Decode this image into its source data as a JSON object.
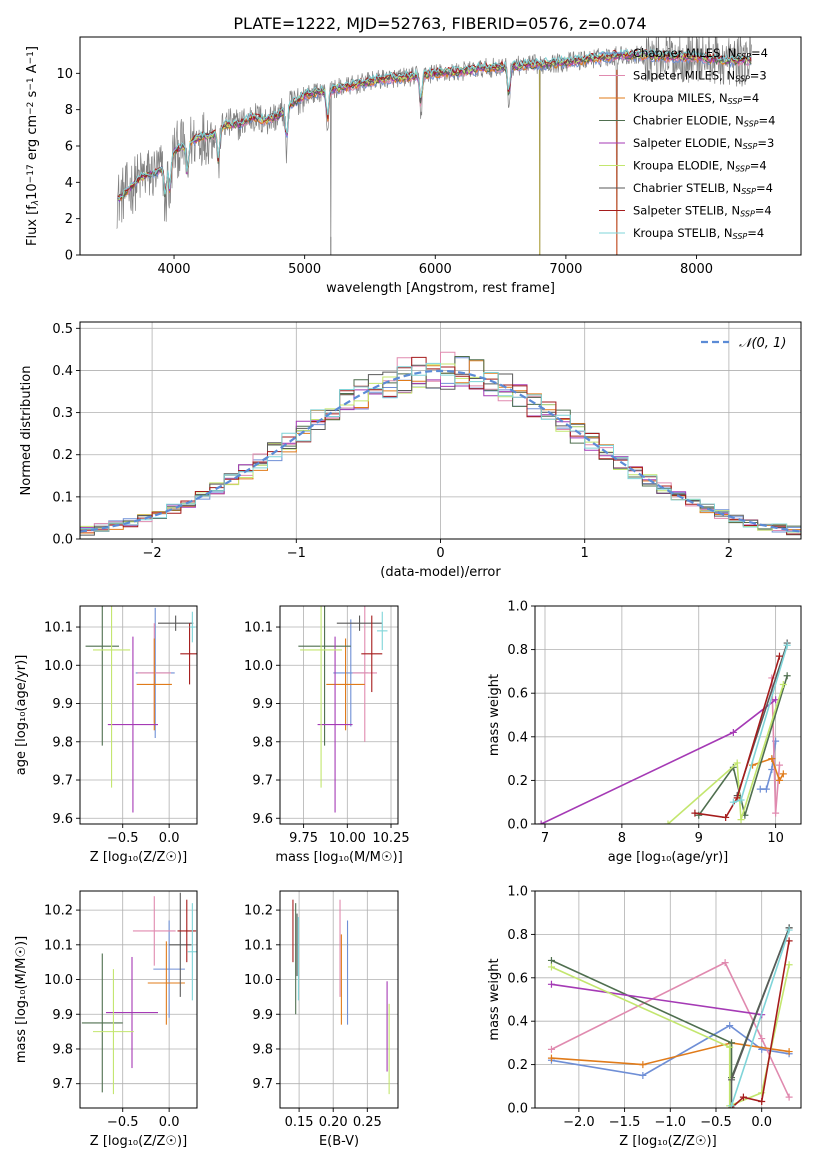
{
  "figure": {
    "title": "PLATE=1222, MJD=52763, FIBERID=0576, z=0.074",
    "model_colors": [
      "#6f8fd6",
      "#e08aaf",
      "#e07b1a",
      "#4f6f4f",
      "#a53ab5",
      "#c3e66e",
      "#5a5a5a",
      "#a51c1c",
      "#7fd4d8"
    ]
  },
  "chart_data": [
    {
      "id": "spectrum",
      "type": "line",
      "title": "PLATE=1222, MJD=52763, FIBERID=0576, z=0.074",
      "xlabel": "wavelength [Angstrom, rest frame]",
      "ylabel_parts": [
        "Flux [f",
        "λ",
        "10",
        "−17",
        " erg cm",
        "−2",
        " s",
        "−1",
        " A",
        "−1",
        "]"
      ],
      "xlim": [
        3280,
        8800
      ],
      "ylim": [
        0,
        12
      ],
      "xticks": [
        4000,
        5000,
        6000,
        7000,
        8000
      ],
      "yticks": [
        0,
        2,
        4,
        6,
        8,
        10
      ],
      "legend_position": "right",
      "legend": [
        {
          "label": "Chabrier MILES, N",
          "sub": "SSP",
          "tail": "=4",
          "color": "#6f8fd6"
        },
        {
          "label": "Salpeter MILES, N",
          "sub": "SSP",
          "tail": "=3",
          "color": "#e08aaf"
        },
        {
          "label": "Kroupa MILES, N",
          "sub": "SSP",
          "tail": "=4",
          "color": "#e07b1a"
        },
        {
          "label": "Chabrier ELODIE, N",
          "sub": "SSP",
          "tail": "=4",
          "color": "#4f6f4f"
        },
        {
          "label": "Salpeter ELODIE, N",
          "sub": "SSP",
          "tail": "=3",
          "color": "#a53ab5"
        },
        {
          "label": "Kroupa ELODIE, N",
          "sub": "SSP",
          "tail": "=4",
          "color": "#c3e66e"
        },
        {
          "label": "Chabrier STELIB, N",
          "sub": "SSP",
          "tail": "=4",
          "color": "#5a5a5a"
        },
        {
          "label": "Salpeter STELIB, N",
          "sub": "SSP",
          "tail": "=4",
          "color": "#a51c1c"
        },
        {
          "label": "Kroupa STELIB, N",
          "sub": "SSP",
          "tail": "=4",
          "color": "#7fd4d8"
        }
      ],
      "continuum": {
        "x": [
          3560,
          3650,
          3750,
          3850,
          3950,
          4000,
          4100,
          4200,
          4300,
          4400,
          4500,
          4600,
          4700,
          4800,
          4900,
          5000,
          5200,
          5400,
          5600,
          5800,
          6000,
          6200,
          6400,
          6600,
          6800,
          7000,
          7200,
          7400,
          7600,
          7800,
          8000,
          8200,
          8400
        ],
        "y": [
          3.0,
          3.6,
          4.3,
          4.5,
          4.9,
          5.7,
          6.1,
          6.5,
          6.6,
          7.2,
          7.2,
          7.6,
          7.4,
          7.7,
          8.3,
          8.8,
          9.1,
          9.4,
          9.7,
          9.8,
          10.0,
          10.1,
          10.3,
          10.4,
          10.5,
          10.6,
          10.8,
          11.0,
          11.0,
          10.9,
          10.9,
          10.7,
          10.7
        ]
      },
      "absorption_lines": [
        3934,
        3969,
        4102,
        4340,
        4861,
        5175,
        5890,
        6563,
        8500,
        8542,
        8662
      ],
      "sky_artifacts": [
        5200,
        6800,
        7390
      ]
    },
    {
      "id": "residuals",
      "type": "line",
      "xlabel": "(data-model)/error",
      "ylabel": "Normed distribution",
      "xlim": [
        -2.5,
        2.5
      ],
      "ylim": [
        0,
        0.515
      ],
      "xticks": [
        -2,
        -1,
        0,
        1,
        2
      ],
      "xticklabels": [
        "−2",
        "−1",
        "0",
        "1",
        "2"
      ],
      "yticks": [
        0.0,
        0.1,
        0.2,
        0.3,
        0.4,
        0.5
      ],
      "yticklabels": [
        "0.0",
        "0.1",
        "0.2",
        "0.3",
        "0.4",
        "0.5"
      ],
      "grid": true,
      "legend_label": "𝒩(0, 1)",
      "legend_position": "top-right",
      "bin_width": 0.1,
      "noise_amplitude": 0.045
    },
    {
      "id": "z_vs_age",
      "type": "scatter",
      "xlabel": "Z [log₁₀(Z/Z☉)]",
      "ylabel": "age  [log₁₀(age/yr)]",
      "xlim": [
        -0.96,
        0.3
      ],
      "ylim": [
        9.585,
        10.155
      ],
      "xticks": [
        -0.5,
        0.0
      ],
      "xticklabels": [
        "−0.5",
        "0.0"
      ],
      "yticks": [
        9.6,
        9.7,
        9.8,
        9.9,
        10.0,
        10.1
      ],
      "yticklabels": [
        "9.6",
        "9.7",
        "9.8",
        "9.9",
        "10.0",
        "10.1"
      ],
      "grid": true,
      "points": [
        {
          "x": -0.15,
          "y": 9.98,
          "xerr": 0.21,
          "yerr": 0.17
        },
        {
          "x": -0.16,
          "y": 9.98,
          "xerr": 0.18,
          "yerr": 0.13
        },
        {
          "x": -0.16,
          "y": 9.95,
          "xerr": 0.19,
          "yerr": 0.12
        },
        {
          "x": -0.72,
          "y": 10.05,
          "xerr": 0.18,
          "yerr": 0.26
        },
        {
          "x": -0.39,
          "y": 9.845,
          "xerr": 0.27,
          "yerr": 0.23
        },
        {
          "x": -0.62,
          "y": 10.04,
          "xerr": 0.2,
          "yerr": 0.36
        },
        {
          "x": 0.07,
          "y": 10.11,
          "xerr": 0.19,
          "yerr": 0.02
        },
        {
          "x": 0.22,
          "y": 10.03,
          "xerr": 0.1,
          "yerr": 0.08
        },
        {
          "x": 0.25,
          "y": 10.1,
          "xerr": 0.03,
          "yerr": 0.04
        }
      ]
    },
    {
      "id": "mass_vs_age",
      "type": "scatter",
      "xlabel": "mass [log₁₀(M/M☉)]",
      "ylabel": "",
      "xlim": [
        9.615,
        10.29
      ],
      "ylim": [
        9.585,
        10.155
      ],
      "xticks": [
        9.75,
        10.0,
        10.25
      ],
      "xticklabels": [
        "9.75",
        "10.00",
        "10.25"
      ],
      "yticks": [
        9.6,
        9.7,
        9.8,
        9.9,
        10.0,
        10.1
      ],
      "yticklabels": [
        "9.6",
        "9.7",
        "9.8",
        "9.9",
        "10.0",
        "10.1"
      ],
      "grid": true,
      "points": [
        {
          "x": 10.02,
          "y": 9.98,
          "xerr": 0.1,
          "yerr": 0.14
        },
        {
          "x": 10.1,
          "y": 9.98,
          "xerr": 0.07,
          "yerr": 0.18
        },
        {
          "x": 9.99,
          "y": 9.95,
          "xerr": 0.11,
          "yerr": 0.12
        },
        {
          "x": 9.87,
          "y": 10.05,
          "xerr": 0.15,
          "yerr": 0.26
        },
        {
          "x": 9.93,
          "y": 9.845,
          "xerr": 0.1,
          "yerr": 0.23
        },
        {
          "x": 9.85,
          "y": 10.04,
          "xerr": 0.12,
          "yerr": 0.36
        },
        {
          "x": 10.07,
          "y": 10.11,
          "xerr": 0.13,
          "yerr": 0.02
        },
        {
          "x": 10.14,
          "y": 10.03,
          "xerr": 0.06,
          "yerr": 0.1
        },
        {
          "x": 10.2,
          "y": 10.09,
          "xerr": 0.03,
          "yerr": 0.05
        }
      ]
    },
    {
      "id": "age_vs_weight",
      "type": "line",
      "xlabel": "age  [log₁₀(age/yr)]",
      "ylabel": "mass weight",
      "xlim": [
        6.87,
        10.33
      ],
      "ylim": [
        0.0,
        1.0
      ],
      "xticks": [
        7,
        8,
        9,
        10
      ],
      "xticklabels": [
        "7",
        "8",
        "9",
        "10"
      ],
      "yticks": [
        0.0,
        0.2,
        0.4,
        0.6,
        0.8,
        1.0
      ],
      "yticklabels": [
        "0.0",
        "0.2",
        "0.4",
        "0.6",
        "0.8",
        "1.0"
      ],
      "grid": true,
      "series": [
        {
          "x": [
            9.8,
            9.88,
            9.95,
            10.0
          ],
          "y": [
            0.16,
            0.16,
            0.25,
            0.38
          ]
        },
        {
          "x": [
            9.95,
            10.0,
            10.05
          ],
          "y": [
            0.67,
            0.05,
            0.27
          ]
        },
        {
          "x": [
            9.7,
            9.95,
            10.05,
            10.1
          ],
          "y": [
            0.27,
            0.3,
            0.2,
            0.23
          ]
        },
        {
          "x": [
            9.0,
            9.45,
            9.6,
            10.15
          ],
          "y": [
            0.04,
            0.26,
            0.04,
            0.68
          ]
        },
        {
          "x": [
            6.95,
            9.45,
            10.0
          ],
          "y": [
            0.0,
            0.42,
            0.57
          ]
        },
        {
          "x": [
            8.6,
            9.5,
            9.55,
            10.1
          ],
          "y": [
            0.0,
            0.28,
            0.02,
            0.64
          ]
        },
        {
          "x": [
            9.5,
            10.15
          ],
          "y": [
            0.13,
            0.83
          ]
        },
        {
          "x": [
            8.95,
            9.35,
            9.5,
            10.05
          ],
          "y": [
            0.05,
            0.03,
            0.12,
            0.77
          ]
        },
        {
          "x": [
            9.45,
            9.55,
            10.15
          ],
          "y": [
            0.1,
            0.11,
            0.82
          ]
        }
      ]
    },
    {
      "id": "z_vs_mass",
      "type": "scatter",
      "xlabel": "Z [log₁₀(Z/Z☉)]",
      "ylabel": "mass [log₁₀(M/M☉)]",
      "xlim": [
        -0.96,
        0.3
      ],
      "ylim": [
        9.63,
        10.255
      ],
      "xticks": [
        -0.5,
        0.0
      ],
      "xticklabels": [
        "−0.5",
        "0.0"
      ],
      "yticks": [
        9.7,
        9.8,
        9.9,
        10.0,
        10.1,
        10.2
      ],
      "yticklabels": [
        "9.7",
        "9.8",
        "9.9",
        "10.0",
        "10.1",
        "10.2"
      ],
      "grid": true,
      "points": [
        {
          "x": 0.0,
          "y": 10.03,
          "xerr": 0.17,
          "yerr": 0.14
        },
        {
          "x": -0.16,
          "y": 10.14,
          "xerr": 0.23,
          "yerr": 0.1
        },
        {
          "x": -0.03,
          "y": 9.99,
          "xerr": 0.2,
          "yerr": 0.12
        },
        {
          "x": -0.72,
          "y": 9.875,
          "xerr": 0.22,
          "yerr": 0.2
        },
        {
          "x": -0.4,
          "y": 9.905,
          "xerr": 0.28,
          "yerr": 0.16
        },
        {
          "x": -0.6,
          "y": 9.85,
          "xerr": 0.22,
          "yerr": 0.18
        },
        {
          "x": 0.12,
          "y": 10.1,
          "xerr": 0.12,
          "yerr": 0.15
        },
        {
          "x": 0.19,
          "y": 10.14,
          "xerr": 0.1,
          "yerr": 0.09
        },
        {
          "x": 0.25,
          "y": 10.08,
          "xerr": 0.05,
          "yerr": 0.14
        }
      ]
    },
    {
      "id": "ebv_vs_mass",
      "type": "scatter",
      "xlabel": "E(B-V)",
      "ylabel": "",
      "xlim": [
        0.122,
        0.295
      ],
      "ylim": [
        9.63,
        10.255
      ],
      "xticks": [
        0.15,
        0.2,
        0.25
      ],
      "xticklabels": [
        "0.15",
        "0.20",
        "0.25"
      ],
      "yticks": [
        9.7,
        9.8,
        9.9,
        10.0,
        10.1,
        10.2
      ],
      "yticklabels": [
        "9.7",
        "9.8",
        "9.9",
        "10.0",
        "10.1",
        "10.2"
      ],
      "grid": true,
      "points": [
        {
          "x": 0.221,
          "y": 10.02,
          "yerr": 0.15
        },
        {
          "x": 0.21,
          "y": 10.09,
          "yerr": 0.14
        },
        {
          "x": 0.212,
          "y": 10.0,
          "yerr": 0.13
        },
        {
          "x": 0.145,
          "y": 10.06,
          "yerr": 0.16
        },
        {
          "x": 0.279,
          "y": 9.865,
          "yerr": 0.13
        },
        {
          "x": 0.282,
          "y": 9.8,
          "yerr": 0.13
        },
        {
          "x": 0.147,
          "y": 10.1,
          "yerr": 0.09
        },
        {
          "x": 0.141,
          "y": 10.14,
          "yerr": 0.09
        },
        {
          "x": 0.149,
          "y": 10.06,
          "yerr": 0.12
        }
      ]
    },
    {
      "id": "z_vs_weight",
      "type": "line",
      "xlabel": "Z [log₁₀(Z/Z☉)]",
      "ylabel": "mass weight",
      "xlim": [
        -2.48,
        0.43
      ],
      "ylim": [
        0.0,
        1.0
      ],
      "xticks": [
        -2.0,
        -1.5,
        -1.0,
        -0.5,
        0.0
      ],
      "xticklabels": [
        "−2.0",
        "−1.5",
        "−1.0",
        "−0.5",
        "0.0"
      ],
      "yticks": [
        0.0,
        0.2,
        0.4,
        0.6,
        0.8,
        1.0
      ],
      "yticklabels": [
        "0.0",
        "0.2",
        "0.4",
        "0.6",
        "0.8",
        "1.0"
      ],
      "grid": true,
      "series": [
        {
          "x": [
            -2.3,
            -1.3,
            -0.35,
            0.0,
            0.3
          ],
          "y": [
            0.22,
            0.15,
            0.38,
            0.27,
            0.25
          ]
        },
        {
          "x": [
            -2.3,
            -0.4,
            0.0,
            0.3
          ],
          "y": [
            0.27,
            0.67,
            0.32,
            0.05
          ]
        },
        {
          "x": [
            -2.3,
            -1.3,
            -0.33,
            0.3
          ],
          "y": [
            0.23,
            0.2,
            0.3,
            0.26
          ]
        },
        {
          "x": [
            -2.3,
            -0.33,
            -0.33,
            0.3
          ],
          "y": [
            0.68,
            0.3,
            0.14,
            0.83
          ]
        },
        {
          "x": [
            -2.3,
            0.0
          ],
          "y": [
            0.57,
            0.43
          ]
        },
        {
          "x": [
            -2.3,
            -0.35,
            -0.35,
            0.0,
            0.3
          ],
          "y": [
            0.65,
            0.28,
            0.01,
            0.07,
            0.66
          ]
        },
        {
          "x": [
            -0.33,
            -0.33,
            0.3
          ],
          "y": [
            0.0,
            0.13,
            0.83
          ]
        },
        {
          "x": [
            -0.33,
            -0.2,
            0.0,
            0.3
          ],
          "y": [
            0.0,
            0.05,
            0.03,
            0.77
          ]
        },
        {
          "x": [
            -0.33,
            0.3
          ],
          "y": [
            0.01,
            0.82
          ]
        }
      ]
    }
  ]
}
